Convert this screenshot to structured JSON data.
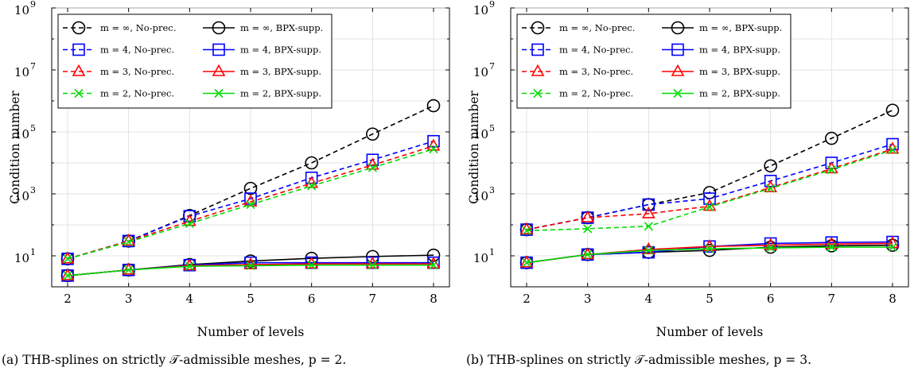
{
  "chart_data": [
    {
      "type": "line",
      "ylabel": "Condition number",
      "xlabel": "Number of levels",
      "yscale": "log",
      "ylim": [
        1,
        1000000000
      ],
      "xlim": [
        2,
        8
      ],
      "x": [
        2,
        3,
        4,
        5,
        6,
        7,
        8
      ],
      "x_tick_labels": [
        "2",
        "3",
        "4",
        "5",
        "6",
        "7",
        "8"
      ],
      "y_ticks": [
        10,
        1000,
        100000,
        10000000,
        1000000000
      ],
      "y_tick_labels": [
        [
          "10",
          "1"
        ],
        [
          "10",
          "3"
        ],
        [
          "10",
          "5"
        ],
        [
          "10",
          "7"
        ],
        [
          "10",
          "9"
        ]
      ],
      "grid": true,
      "legend_position": "top-left",
      "series": [
        {
          "name": "m = ∞, No-prec.",
          "color": "#000000",
          "dash": "dashed",
          "marker": "circle",
          "values": [
            8,
            30,
            200,
            1500,
            10000,
            85000,
            700000
          ]
        },
        {
          "name": "m = ∞, BPX-supp.",
          "color": "#000000",
          "dash": "solid",
          "marker": "circle",
          "values": [
            2.3,
            3.5,
            5.2,
            6.8,
            8.3,
            9.5,
            10.5
          ]
        },
        {
          "name": "m = 4, No-prec.",
          "color": "#0000ff",
          "dash": "dashed",
          "marker": "square",
          "values": [
            8,
            30,
            190,
            700,
            3300,
            12500,
            50000
          ]
        },
        {
          "name": "m = 4, BPX-supp.",
          "color": "#0000ff",
          "dash": "solid",
          "marker": "square",
          "values": [
            2.3,
            3.5,
            5,
            6,
            6,
            6,
            6
          ]
        },
        {
          "name": "m = 3, No-prec.",
          "color": "#ff0000",
          "dash": "dashed",
          "marker": "triangle",
          "values": [
            8,
            30,
            130,
            550,
            2200,
            8500,
            35000
          ]
        },
        {
          "name": "m = 3, BPX-supp.",
          "color": "#ff0000",
          "dash": "solid",
          "marker": "triangle",
          "values": [
            2.3,
            3.5,
            4.8,
            5.2,
            5.5,
            5.5,
            5.5
          ]
        },
        {
          "name": "m = 2, No-prec.",
          "color": "#00dd00",
          "dash": "dashed",
          "marker": "x",
          "values": [
            8,
            28,
            110,
            450,
            1800,
            7000,
            28000
          ]
        },
        {
          "name": "m = 2, BPX-supp.",
          "color": "#00dd00",
          "dash": "solid",
          "marker": "x",
          "values": [
            2.3,
            3.5,
            4.6,
            4.8,
            5,
            5,
            5
          ]
        }
      ]
    },
    {
      "type": "line",
      "ylabel": "Condition number",
      "xlabel": "Number of levels",
      "yscale": "log",
      "ylim": [
        1,
        1000000000
      ],
      "xlim": [
        2,
        8
      ],
      "x": [
        2,
        3,
        4,
        5,
        6,
        7,
        8
      ],
      "x_tick_labels": [
        "2",
        "3",
        "4",
        "5",
        "6",
        "7",
        "8"
      ],
      "y_ticks": [
        10,
        1000,
        100000,
        10000000,
        1000000000
      ],
      "y_tick_labels": [
        [
          "10",
          "1"
        ],
        [
          "10",
          "3"
        ],
        [
          "10",
          "5"
        ],
        [
          "10",
          "7"
        ],
        [
          "10",
          "9"
        ]
      ],
      "grid": true,
      "legend_position": "top-left",
      "series": [
        {
          "name": "m = ∞, No-prec.",
          "color": "#000000",
          "dash": "dashed",
          "marker": "circle",
          "values": [
            70,
            170,
            450,
            1100,
            8000,
            62000,
            500000
          ]
        },
        {
          "name": "m = ∞, BPX-supp.",
          "color": "#000000",
          "dash": "solid",
          "marker": "circle",
          "values": [
            6,
            11,
            13,
            15,
            19,
            21,
            22
          ]
        },
        {
          "name": "m = 4, No-prec.",
          "color": "#0000ff",
          "dash": "dashed",
          "marker": "square",
          "values": [
            70,
            170,
            450,
            700,
            2600,
            10000,
            40000
          ]
        },
        {
          "name": "m = 4, BPX-supp.",
          "color": "#0000ff",
          "dash": "solid",
          "marker": "square",
          "values": [
            6,
            11,
            13,
            20,
            25,
            27,
            28
          ]
        },
        {
          "name": "m = 3, No-prec.",
          "color": "#ff0000",
          "dash": "dashed",
          "marker": "triangle",
          "values": [
            70,
            170,
            230,
            400,
            1600,
            6500,
            28000
          ]
        },
        {
          "name": "m = 3, BPX-supp.",
          "color": "#ff0000",
          "dash": "solid",
          "marker": "triangle",
          "values": [
            6,
            11,
            16,
            20,
            22,
            24,
            25
          ]
        },
        {
          "name": "m = 2, No-prec.",
          "color": "#00dd00",
          "dash": "dashed",
          "marker": "x",
          "values": [
            65,
            75,
            90,
            380,
            1500,
            6000,
            26000
          ]
        },
        {
          "name": "m = 2, BPX-supp.",
          "color": "#00dd00",
          "dash": "solid",
          "marker": "x",
          "values": [
            6,
            11,
            15,
            17,
            18,
            19,
            19
          ]
        }
      ]
    }
  ],
  "captions": [
    "(a)  THB-splines on strictly 𝒯-admissible meshes, p = 2.",
    "(b)  THB-splines on strictly 𝒯-admissible meshes, p = 3."
  ]
}
